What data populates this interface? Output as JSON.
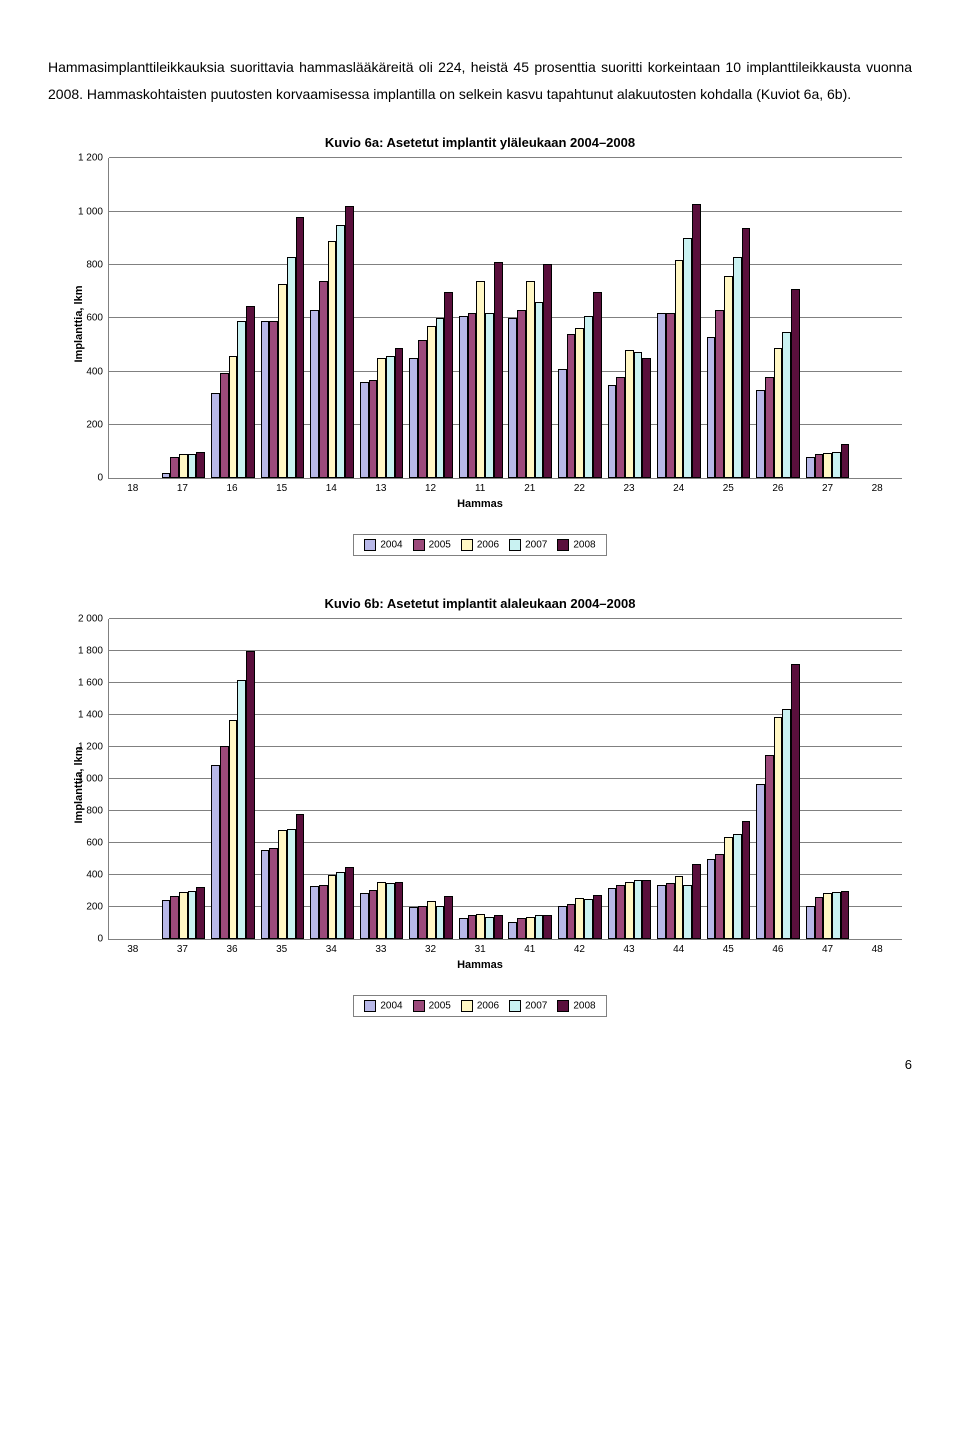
{
  "paragraph": "Hammasimplanttileikkauksia suorittavia hammaslääkäreitä oli 224, heistä 45 prosenttia suoritti korkeintaan 10 implanttileikkausta vuonna 2008. Hammaskohtaisten puutosten korvaamisessa implantilla on selkein kasvu tapahtunut alakuutosten kohdalla (Kuviot 6a, 6b).",
  "legend_years": [
    "2004",
    "2005",
    "2006",
    "2007",
    "2008"
  ],
  "colors": {
    "2004": "#b8b8e8",
    "2005": "#9c4a7b",
    "2006": "#fff7c4",
    "2007": "#c9f2f2",
    "2008": "#5a0f3c"
  },
  "chart_a": {
    "title": "Kuvio 6a: Asetetut implantit yläleukaan 2004–2008",
    "ylabel": "Implanttia, lkm",
    "xlabel": "Hammas",
    "ymax": 1200,
    "ystep": 200,
    "categories": [
      "18",
      "17",
      "16",
      "15",
      "14",
      "13",
      "12",
      "11",
      "21",
      "22",
      "23",
      "24",
      "25",
      "26",
      "27",
      "28"
    ],
    "series": {
      "2004": [
        0,
        20,
        320,
        590,
        630,
        360,
        450,
        610,
        600,
        410,
        350,
        620,
        530,
        330,
        80,
        0
      ],
      "2005": [
        0,
        80,
        395,
        590,
        740,
        370,
        520,
        620,
        630,
        540,
        380,
        620,
        630,
        380,
        90,
        0
      ],
      "2006": [
        0,
        90,
        460,
        730,
        890,
        450,
        570,
        740,
        740,
        565,
        480,
        820,
        760,
        490,
        95,
        0
      ],
      "2007": [
        0,
        90,
        590,
        830,
        950,
        460,
        600,
        620,
        660,
        610,
        475,
        900,
        830,
        550,
        100,
        0
      ],
      "2008": [
        0,
        100,
        645,
        980,
        1020,
        490,
        700,
        810,
        805,
        700,
        450,
        1030,
        940,
        710,
        130,
        0
      ]
    }
  },
  "chart_b": {
    "title": "Kuvio 6b: Asetetut implantit alaleukaan 2004–2008",
    "ylabel": "Implanttia, lkm",
    "xlabel": "Hammas",
    "ymax": 2000,
    "ystep": 200,
    "categories": [
      "38",
      "37",
      "36",
      "35",
      "34",
      "33",
      "32",
      "31",
      "41",
      "42",
      "43",
      "44",
      "45",
      "46",
      "47",
      "48"
    ],
    "series": {
      "2004": [
        0,
        245,
        1090,
        560,
        330,
        290,
        200,
        130,
        110,
        210,
        320,
        340,
        500,
        970,
        210,
        0
      ],
      "2005": [
        0,
        270,
        1210,
        570,
        340,
        305,
        210,
        150,
        130,
        220,
        340,
        350,
        530,
        1150,
        265,
        0
      ],
      "2006": [
        0,
        295,
        1370,
        680,
        400,
        355,
        240,
        155,
        140,
        260,
        355,
        395,
        640,
        1390,
        290,
        0
      ],
      "2007": [
        0,
        300,
        1620,
        690,
        420,
        350,
        210,
        140,
        150,
        250,
        370,
        340,
        660,
        1440,
        295,
        0
      ],
      "2008": [
        0,
        325,
        1800,
        780,
        450,
        360,
        270,
        150,
        150,
        275,
        370,
        470,
        740,
        1720,
        300,
        0
      ]
    }
  },
  "page_number": "6"
}
